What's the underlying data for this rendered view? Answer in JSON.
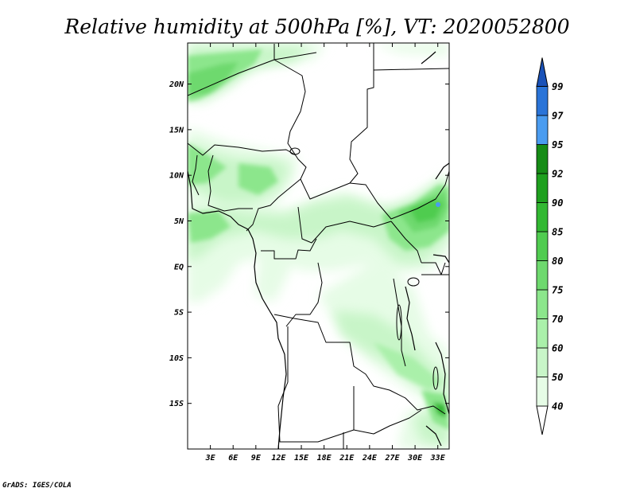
{
  "title": "Relative humidity at 500hPa [%], VT: 2020052800",
  "credit": "GrADS: IGES/COLA",
  "map": {
    "variable": "Relative humidity",
    "level": "500hPa",
    "units": "%",
    "valid_time": "2020052800",
    "lon_range": [
      0,
      34.5
    ],
    "lat_range": [
      -20,
      24.5
    ],
    "lat_ticks": [
      {
        "value": 20,
        "label": "20N"
      },
      {
        "value": 15,
        "label": "15N"
      },
      {
        "value": 10,
        "label": "10N"
      },
      {
        "value": 5,
        "label": "5N"
      },
      {
        "value": 0,
        "label": "EQ"
      },
      {
        "value": -5,
        "label": "5S"
      },
      {
        "value": -10,
        "label": "10S"
      },
      {
        "value": -15,
        "label": "15S"
      }
    ],
    "lon_ticks": [
      {
        "value": 3,
        "label": "3E"
      },
      {
        "value": 6,
        "label": "6E"
      },
      {
        "value": 9,
        "label": "9E"
      },
      {
        "value": 12,
        "label": "12E"
      },
      {
        "value": 15,
        "label": "15E"
      },
      {
        "value": 18,
        "label": "18E"
      },
      {
        "value": 21,
        "label": "21E"
      },
      {
        "value": 24,
        "label": "24E"
      },
      {
        "value": 27,
        "label": "27E"
      },
      {
        "value": 30,
        "label": "30E"
      },
      {
        "value": 33,
        "label": "33E"
      }
    ]
  },
  "colorbar": {
    "levels": [
      "40",
      "50",
      "60",
      "70",
      "75",
      "80",
      "85",
      "90",
      "92",
      "95",
      "97",
      "99"
    ],
    "colors": [
      "#ffffff",
      "#e6fce6",
      "#c8f5c8",
      "#aaf0aa",
      "#8ce68c",
      "#6ed96e",
      "#50cc50",
      "#32b832",
      "#1ea01e",
      "#168c16",
      "#4a9cf0",
      "#2a74d8",
      "#1a52b8"
    ]
  }
}
